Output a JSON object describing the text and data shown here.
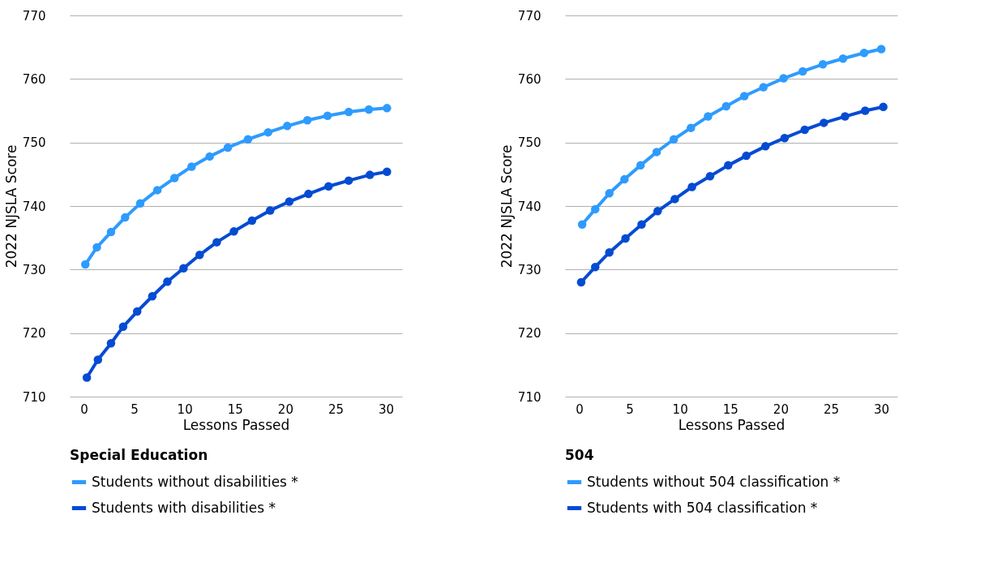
{
  "chart_data": [
    {
      "type": "line",
      "legend_title": "Special Education",
      "xlabel": "Lessons Passed",
      "ylabel": "2022 NJSLA Score",
      "xlim": [
        -1.4,
        31.6
      ],
      "xticks": [
        0,
        5,
        10,
        15,
        20,
        25,
        30
      ],
      "ylim": [
        710,
        770
      ],
      "yticks": [
        710,
        720,
        730,
        740,
        750,
        760,
        770
      ],
      "grid": "y",
      "legend": "bottom left",
      "marker": "circle",
      "series": [
        {
          "name": "Students without disabilities *",
          "color": "#2e9bfe",
          "x": [
            0.15,
            1.3,
            2.7,
            4.1,
            5.6,
            7.3,
            9.0,
            10.7,
            12.5,
            14.3,
            16.3,
            18.3,
            20.2,
            22.2,
            24.2,
            26.3,
            28.3,
            30.1
          ],
          "values": [
            730.8,
            733.5,
            735.9,
            738.2,
            740.4,
            742.5,
            744.4,
            746.2,
            747.8,
            749.2,
            750.5,
            751.6,
            752.6,
            753.5,
            754.2,
            754.8,
            755.2,
            755.4
          ]
        },
        {
          "name": "Students with disabilities *",
          "color": "#034bd3",
          "x": [
            0.3,
            1.4,
            2.7,
            3.9,
            5.3,
            6.8,
            8.3,
            9.9,
            11.5,
            13.2,
            14.9,
            16.7,
            18.5,
            20.4,
            22.3,
            24.3,
            26.3,
            28.4,
            30.1
          ],
          "values": [
            713.0,
            715.8,
            718.4,
            721.0,
            723.4,
            725.8,
            728.1,
            730.2,
            732.3,
            734.3,
            736.0,
            737.7,
            739.3,
            740.7,
            741.9,
            743.1,
            744.0,
            744.9,
            745.4
          ]
        }
      ]
    },
    {
      "type": "line",
      "legend_title": "504",
      "xlabel": "Lessons Passed",
      "ylabel": "2022 NJSLA Score",
      "xlim": [
        -1.4,
        31.6
      ],
      "xticks": [
        0,
        5,
        10,
        15,
        20,
        25,
        30
      ],
      "ylim": [
        710,
        770
      ],
      "yticks": [
        710,
        720,
        730,
        740,
        750,
        760,
        770
      ],
      "grid": "y",
      "legend": "bottom left",
      "marker": "circle",
      "series": [
        {
          "name": "Students without 504 classification *",
          "color": "#2e9bfe",
          "x": [
            0.3,
            1.6,
            3.0,
            4.5,
            6.1,
            7.7,
            9.4,
            11.1,
            12.8,
            14.6,
            16.4,
            18.3,
            20.3,
            22.2,
            24.2,
            26.2,
            28.3,
            30.0
          ],
          "values": [
            737.1,
            739.5,
            742.0,
            744.2,
            746.4,
            748.5,
            750.5,
            752.3,
            754.1,
            755.7,
            757.3,
            758.7,
            760.1,
            761.2,
            762.3,
            763.2,
            764.1,
            764.7
          ]
        },
        {
          "name": "Students with 504 classification *",
          "color": "#034bd3",
          "x": [
            0.2,
            1.6,
            3.0,
            4.6,
            6.2,
            7.8,
            9.5,
            11.2,
            13.0,
            14.8,
            16.6,
            18.5,
            20.4,
            22.4,
            24.3,
            26.4,
            28.4,
            30.2
          ],
          "values": [
            728.0,
            730.4,
            732.7,
            734.9,
            737.1,
            739.2,
            741.1,
            743.0,
            744.7,
            746.4,
            747.9,
            749.4,
            750.7,
            752.0,
            753.1,
            754.1,
            755.0,
            755.6
          ]
        }
      ]
    }
  ]
}
